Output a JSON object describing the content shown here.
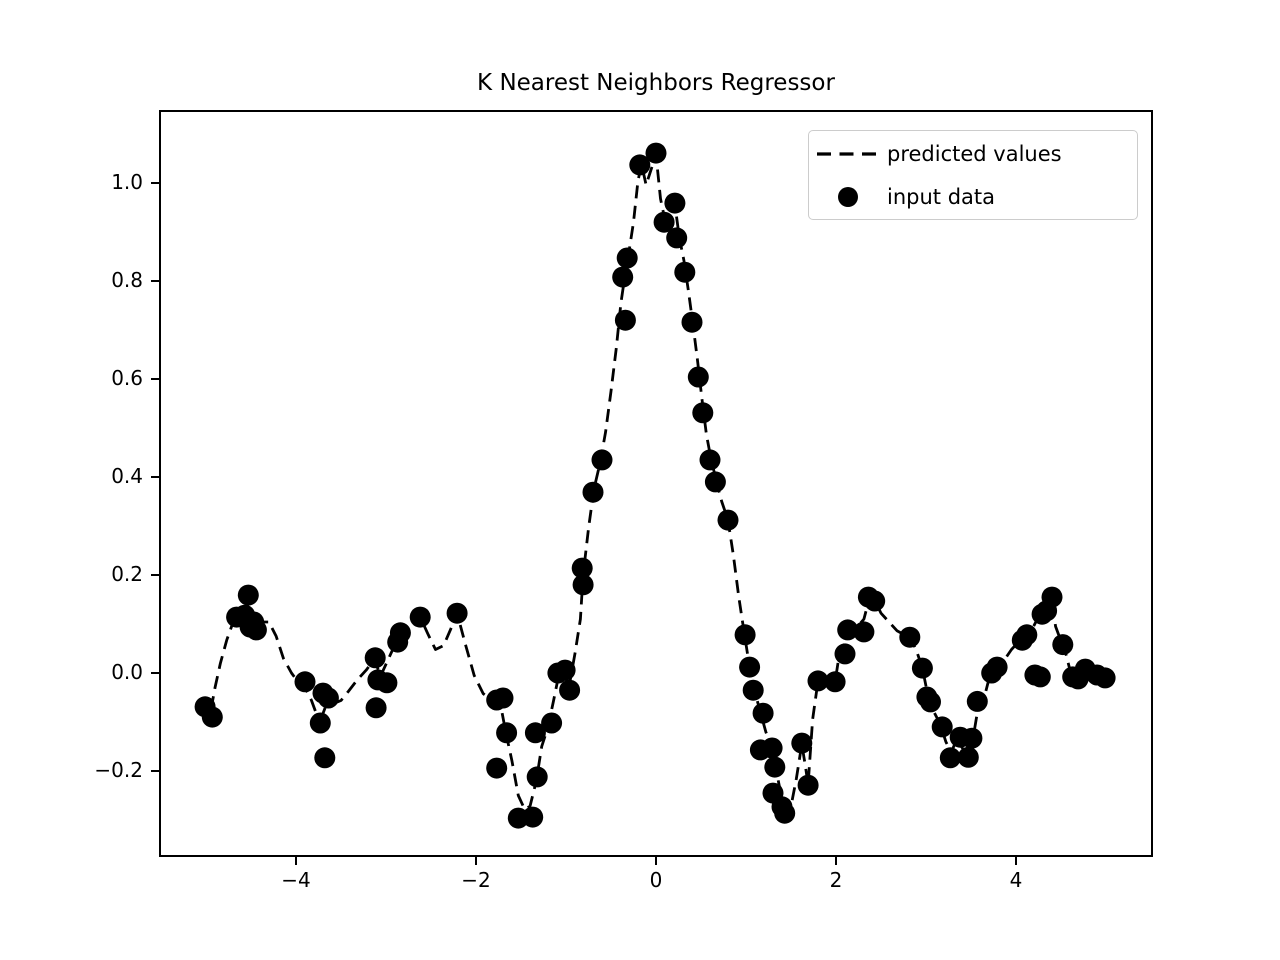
{
  "title": "K Nearest Neighbors Regressor",
  "legend": {
    "items": [
      {
        "label": "predicted values",
        "marker": "dashed-line"
      },
      {
        "label": "input data",
        "marker": "dot"
      }
    ]
  },
  "colors": {
    "line": "#000000",
    "marker": "#000000",
    "legend_border": "#cccccc",
    "background": "#ffffff"
  },
  "chart_data": {
    "type": "line",
    "title": "K Nearest Neighbors Regressor",
    "xlabel": "",
    "ylabel": "",
    "xlim": [
      -5.5,
      5.5
    ],
    "ylim": [
      -0.3714,
      1.1449
    ],
    "grid": false,
    "legend_position": "upper right",
    "x_ticks": [
      {
        "value": -4,
        "label": "−4"
      },
      {
        "value": -2,
        "label": "−2"
      },
      {
        "value": 0,
        "label": "0"
      },
      {
        "value": 2,
        "label": "2"
      },
      {
        "value": 4,
        "label": "4"
      }
    ],
    "y_ticks": [
      {
        "value": 1.0,
        "label": "1.0"
      },
      {
        "value": 0.8,
        "label": "0.8"
      },
      {
        "value": 0.6,
        "label": "0.6"
      },
      {
        "value": 0.4,
        "label": "0.4"
      },
      {
        "value": 0.2,
        "label": "0.2"
      },
      {
        "value": 0.0,
        "label": "0.0"
      },
      {
        "value": -0.2,
        "label": "−0.2"
      }
    ],
    "series": [
      {
        "name": "predicted values",
        "type": "line",
        "style": "dashed",
        "color": "#000000",
        "line_width": 2.8,
        "points": [
          [
            -5.05,
            -0.05
          ],
          [
            -5.0,
            -0.065
          ],
          [
            -4.95,
            -0.08
          ],
          [
            -4.9,
            -0.03
          ],
          [
            -4.84,
            0.02
          ],
          [
            -4.77,
            0.067
          ],
          [
            -4.71,
            0.098
          ],
          [
            -4.62,
            0.122
          ],
          [
            -4.55,
            0.13
          ],
          [
            -4.48,
            0.11
          ],
          [
            -4.4,
            0.104
          ],
          [
            -4.3,
            0.104
          ],
          [
            -4.22,
            0.075
          ],
          [
            -4.14,
            0.03
          ],
          [
            -4.05,
            0.0
          ],
          [
            -3.97,
            -0.02
          ],
          [
            -3.9,
            -0.03
          ],
          [
            -3.83,
            -0.055
          ],
          [
            -3.77,
            -0.085
          ],
          [
            -3.72,
            -0.092
          ],
          [
            -3.67,
            -0.068
          ],
          [
            -3.58,
            -0.062
          ],
          [
            -3.5,
            -0.056
          ],
          [
            -3.42,
            -0.038
          ],
          [
            -3.32,
            -0.014
          ],
          [
            -3.22,
            0.006
          ],
          [
            -3.13,
            0.028
          ],
          [
            -3.06,
            -0.006
          ],
          [
            -2.97,
            0.03
          ],
          [
            -2.88,
            0.066
          ],
          [
            -2.79,
            0.078
          ],
          [
            -2.7,
            0.092
          ],
          [
            -2.62,
            0.114
          ],
          [
            -2.53,
            0.078
          ],
          [
            -2.45,
            0.048
          ],
          [
            -2.36,
            0.056
          ],
          [
            -2.28,
            0.09
          ],
          [
            -2.21,
            0.122
          ],
          [
            -2.12,
            0.06
          ],
          [
            -2.02,
            -0.005
          ],
          [
            -1.92,
            -0.042
          ],
          [
            -1.82,
            -0.056
          ],
          [
            -1.73,
            -0.062
          ],
          [
            -1.67,
            -0.12
          ],
          [
            -1.6,
            -0.18
          ],
          [
            -1.53,
            -0.25
          ],
          [
            -1.46,
            -0.278
          ],
          [
            -1.4,
            -0.272
          ],
          [
            -1.33,
            -0.22
          ],
          [
            -1.27,
            -0.15
          ],
          [
            -1.2,
            -0.11
          ],
          [
            -1.14,
            -0.058
          ],
          [
            -1.08,
            -0.004
          ],
          [
            -1.02,
            0.002
          ],
          [
            -0.97,
            -0.032
          ],
          [
            -0.9,
            0.04
          ],
          [
            -0.84,
            0.11
          ],
          [
            -0.81,
            0.2
          ],
          [
            -0.75,
            0.295
          ],
          [
            -0.69,
            0.375
          ],
          [
            -0.62,
            0.43
          ],
          [
            -0.56,
            0.492
          ],
          [
            -0.5,
            0.575
          ],
          [
            -0.44,
            0.665
          ],
          [
            -0.39,
            0.755
          ],
          [
            -0.35,
            0.805
          ],
          [
            -0.3,
            0.86
          ],
          [
            -0.25,
            0.92
          ],
          [
            -0.2,
            1.005
          ],
          [
            -0.16,
            1.038
          ],
          [
            -0.11,
            0.996
          ],
          [
            -0.05,
            1.03
          ],
          [
            0.0,
            1.058
          ],
          [
            0.05,
            0.968
          ],
          [
            0.1,
            0.924
          ],
          [
            0.16,
            0.946
          ],
          [
            0.21,
            0.956
          ],
          [
            0.26,
            0.888
          ],
          [
            0.31,
            0.842
          ],
          [
            0.36,
            0.78
          ],
          [
            0.41,
            0.712
          ],
          [
            0.46,
            0.64
          ],
          [
            0.51,
            0.56
          ],
          [
            0.56,
            0.487
          ],
          [
            0.61,
            0.438
          ],
          [
            0.67,
            0.392
          ],
          [
            0.73,
            0.35
          ],
          [
            0.8,
            0.312
          ],
          [
            0.86,
            0.24
          ],
          [
            0.92,
            0.155
          ],
          [
            0.98,
            0.082
          ],
          [
            1.04,
            0.012
          ],
          [
            1.1,
            -0.04
          ],
          [
            1.16,
            -0.08
          ],
          [
            1.22,
            -0.12
          ],
          [
            1.28,
            -0.15
          ],
          [
            1.33,
            -0.192
          ],
          [
            1.38,
            -0.24
          ],
          [
            1.44,
            -0.276
          ],
          [
            1.5,
            -0.272
          ],
          [
            1.56,
            -0.215
          ],
          [
            1.62,
            -0.145
          ],
          [
            1.66,
            -0.19
          ],
          [
            1.69,
            -0.228
          ],
          [
            1.74,
            -0.095
          ],
          [
            1.8,
            -0.016
          ],
          [
            1.9,
            -0.017
          ],
          [
            1.99,
            -0.018
          ],
          [
            2.04,
            0.042
          ],
          [
            2.1,
            0.06
          ],
          [
            2.16,
            0.088
          ],
          [
            2.24,
            0.095
          ],
          [
            2.31,
            0.11
          ],
          [
            2.37,
            0.152
          ],
          [
            2.44,
            0.145
          ],
          [
            2.5,
            0.122
          ],
          [
            2.58,
            0.106
          ],
          [
            2.68,
            0.086
          ],
          [
            2.76,
            0.078
          ],
          [
            2.82,
            0.073
          ],
          [
            2.89,
            0.048
          ],
          [
            2.96,
            0.01
          ],
          [
            3.02,
            -0.045
          ],
          [
            3.09,
            -0.08
          ],
          [
            3.16,
            -0.105
          ],
          [
            3.22,
            -0.14
          ],
          [
            3.28,
            -0.162
          ],
          [
            3.34,
            -0.136
          ],
          [
            3.4,
            -0.152
          ],
          [
            3.46,
            -0.168
          ],
          [
            3.52,
            -0.136
          ],
          [
            3.58,
            -0.07
          ],
          [
            3.64,
            -0.055
          ],
          [
            3.7,
            -0.012
          ],
          [
            3.77,
            0.004
          ],
          [
            3.86,
            0.024
          ],
          [
            3.95,
            0.048
          ],
          [
            4.03,
            0.064
          ],
          [
            4.1,
            0.074
          ],
          [
            4.18,
            0.09
          ],
          [
            4.26,
            0.118
          ],
          [
            4.33,
            0.13
          ],
          [
            4.39,
            0.155
          ],
          [
            4.44,
            0.095
          ],
          [
            4.49,
            0.07
          ],
          [
            4.55,
            0.042
          ],
          [
            4.6,
            0.006
          ],
          [
            4.66,
            0.0
          ],
          [
            4.72,
            0.01
          ],
          [
            4.78,
            -0.014
          ],
          [
            4.85,
            -0.006
          ],
          [
            4.92,
            -0.016
          ],
          [
            5.0,
            -0.012
          ]
        ]
      },
      {
        "name": "input data",
        "type": "scatter",
        "color": "#000000",
        "marker_size": 21,
        "points": [
          [
            -5.01,
            -0.069
          ],
          [
            -4.93,
            -0.09
          ],
          [
            -4.66,
            0.114
          ],
          [
            -4.57,
            0.118
          ],
          [
            -4.53,
            0.159
          ],
          [
            -4.51,
            0.094
          ],
          [
            -4.47,
            0.104
          ],
          [
            -4.44,
            0.088
          ],
          [
            -3.9,
            -0.018
          ],
          [
            -3.73,
            -0.102
          ],
          [
            -3.7,
            -0.041
          ],
          [
            -3.64,
            -0.051
          ],
          [
            -3.68,
            -0.173
          ],
          [
            -3.12,
            0.031
          ],
          [
            -3.09,
            -0.014
          ],
          [
            -3.11,
            -0.071
          ],
          [
            -2.99,
            -0.02
          ],
          [
            -2.87,
            0.063
          ],
          [
            -2.84,
            0.082
          ],
          [
            -2.62,
            0.114
          ],
          [
            -2.21,
            0.122
          ],
          [
            -1.77,
            -0.055
          ],
          [
            -1.7,
            -0.051
          ],
          [
            -1.77,
            -0.194
          ],
          [
            -1.66,
            -0.122
          ],
          [
            -1.53,
            -0.296
          ],
          [
            -1.37,
            -0.294
          ],
          [
            -1.34,
            -0.122
          ],
          [
            -1.32,
            -0.212
          ],
          [
            -1.16,
            -0.102
          ],
          [
            -1.09,
            0.0
          ],
          [
            -1.01,
            0.006
          ],
          [
            -0.96,
            -0.035
          ],
          [
            -0.82,
            0.214
          ],
          [
            -0.81,
            0.18
          ],
          [
            -0.7,
            0.369
          ],
          [
            -0.6,
            0.435
          ],
          [
            -0.37,
            0.808
          ],
          [
            -0.34,
            0.72
          ],
          [
            -0.32,
            0.847
          ],
          [
            -0.18,
            1.037
          ],
          [
            0.0,
            1.061
          ],
          [
            0.09,
            0.92
          ],
          [
            0.21,
            0.959
          ],
          [
            0.23,
            0.888
          ],
          [
            0.32,
            0.818
          ],
          [
            0.4,
            0.716
          ],
          [
            0.47,
            0.604
          ],
          [
            0.52,
            0.531
          ],
          [
            0.6,
            0.435
          ],
          [
            0.66,
            0.39
          ],
          [
            0.8,
            0.312
          ],
          [
            0.99,
            0.078
          ],
          [
            1.04,
            0.012
          ],
          [
            1.08,
            -0.035
          ],
          [
            1.19,
            -0.082
          ],
          [
            1.16,
            -0.157
          ],
          [
            1.29,
            -0.153
          ],
          [
            1.32,
            -0.192
          ],
          [
            1.3,
            -0.245
          ],
          [
            1.4,
            -0.273
          ],
          [
            1.43,
            -0.286
          ],
          [
            1.62,
            -0.143
          ],
          [
            1.69,
            -0.229
          ],
          [
            1.8,
            -0.016
          ],
          [
            1.99,
            -0.018
          ],
          [
            2.1,
            0.039
          ],
          [
            2.13,
            0.088
          ],
          [
            2.31,
            0.084
          ],
          [
            2.36,
            0.155
          ],
          [
            2.43,
            0.147
          ],
          [
            2.82,
            0.073
          ],
          [
            2.96,
            0.01
          ],
          [
            3.01,
            -0.049
          ],
          [
            3.05,
            -0.059
          ],
          [
            3.18,
            -0.11
          ],
          [
            3.27,
            -0.173
          ],
          [
            3.38,
            -0.131
          ],
          [
            3.47,
            -0.172
          ],
          [
            3.51,
            -0.133
          ],
          [
            3.57,
            -0.058
          ],
          [
            3.73,
            0.0
          ],
          [
            3.79,
            0.012
          ],
          [
            4.07,
            0.067
          ],
          [
            4.12,
            0.078
          ],
          [
            4.21,
            -0.004
          ],
          [
            4.27,
            -0.008
          ],
          [
            4.29,
            0.12
          ],
          [
            4.34,
            0.127
          ],
          [
            4.4,
            0.155
          ],
          [
            4.52,
            0.058
          ],
          [
            4.63,
            -0.008
          ],
          [
            4.69,
            -0.012
          ],
          [
            4.77,
            0.008
          ],
          [
            4.9,
            -0.004
          ],
          [
            4.99,
            -0.01
          ]
        ]
      }
    ]
  }
}
